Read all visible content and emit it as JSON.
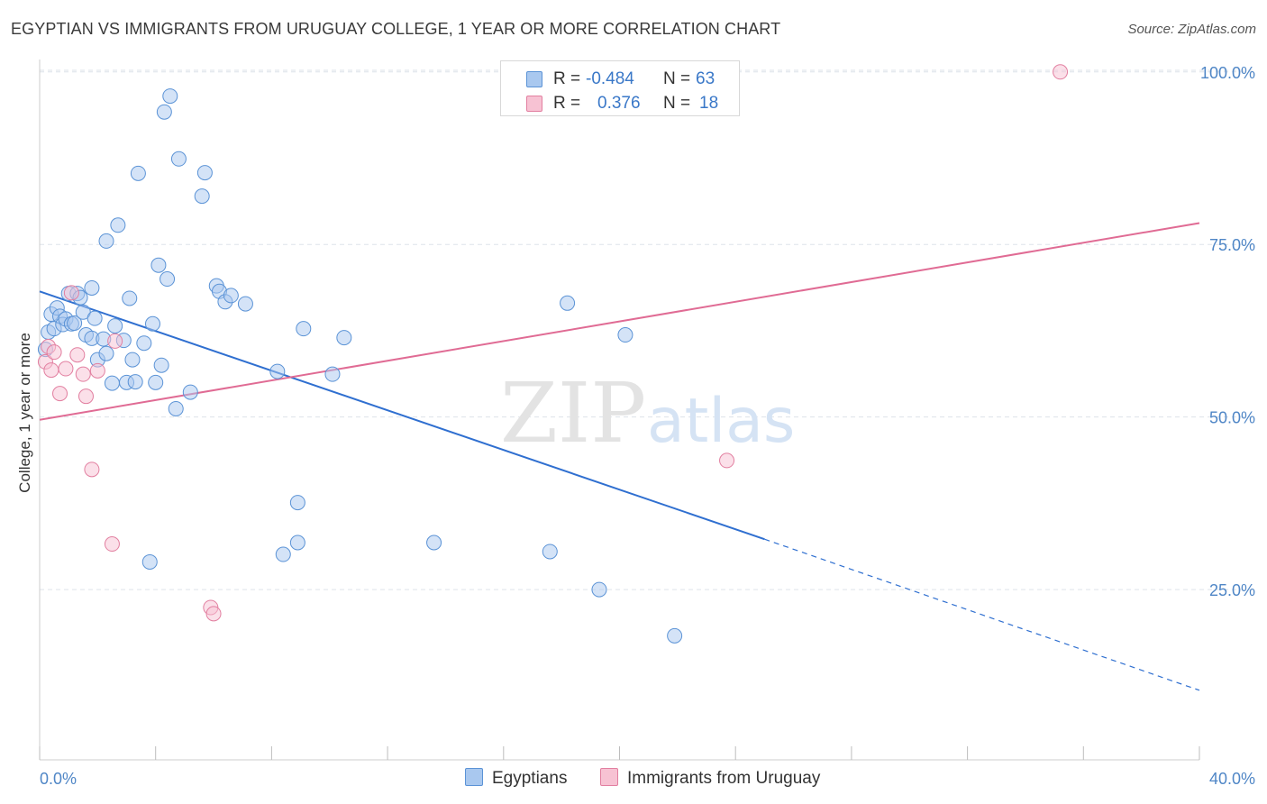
{
  "header": {
    "title": "EGYPTIAN VS IMMIGRANTS FROM URUGUAY COLLEGE, 1 YEAR OR MORE CORRELATION CHART",
    "source": "Source: ZipAtlas.com"
  },
  "legend": {
    "rows": [
      {
        "r_label": "R =",
        "r_value": "-0.484",
        "n_label": "N =",
        "n_value": "63"
      },
      {
        "r_label": "R =",
        "r_value": "0.376",
        "n_label": "N =",
        "n_value": "18"
      }
    ]
  },
  "bottom_legend": {
    "egyptians": "Egyptians",
    "uruguay": "Immigrants from Uruguay"
  },
  "watermark": {
    "zip": "ZIP",
    "atlas": "atlas"
  },
  "colors": {
    "blue_fill": "#a9c8ef",
    "blue_stroke": "#5b93d6",
    "blue_line": "#2f6fd0",
    "pink_fill": "#f7c2d3",
    "pink_stroke": "#e27fa0",
    "pink_line": "#e06b94",
    "grid": "#dde3ea",
    "tick_text": "#4f86c6"
  },
  "chart_data": {
    "type": "scatter",
    "title": "EGYPTIAN VS IMMIGRANTS FROM URUGUAY COLLEGE, 1 YEAR OR MORE CORRELATION CHART",
    "xlabel": "",
    "ylabel": "College, 1 year or more",
    "xlim": [
      0,
      40
    ],
    "ylim": [
      0,
      103
    ],
    "x_tick_labels": [
      "0.0%",
      "40.0%"
    ],
    "y_ticks": [
      25,
      50,
      75,
      100
    ],
    "y_tick_labels": [
      "25.0%",
      "50.0%",
      "75.0%",
      "100.0%"
    ],
    "grid": true,
    "series": [
      {
        "name": "Egyptians",
        "r": -0.484,
        "n": 63,
        "points": [
          [
            0.2,
            59.8
          ],
          [
            0.3,
            62.3
          ],
          [
            0.4,
            64.9
          ],
          [
            0.5,
            62.8
          ],
          [
            0.6,
            65.8
          ],
          [
            0.7,
            64.6
          ],
          [
            0.8,
            63.4
          ],
          [
            0.9,
            64.2
          ],
          [
            1.0,
            67.9
          ],
          [
            1.1,
            63.5
          ],
          [
            1.2,
            63.6
          ],
          [
            1.3,
            67.9
          ],
          [
            1.4,
            67.3
          ],
          [
            1.5,
            65.2
          ],
          [
            1.6,
            61.9
          ],
          [
            1.8,
            61.4
          ],
          [
            1.8,
            68.7
          ],
          [
            1.9,
            64.3
          ],
          [
            2.0,
            58.3
          ],
          [
            2.2,
            61.3
          ],
          [
            2.3,
            59.2
          ],
          [
            2.3,
            75.5
          ],
          [
            2.5,
            54.9
          ],
          [
            2.6,
            63.2
          ],
          [
            2.7,
            77.8
          ],
          [
            2.9,
            61.1
          ],
          [
            3.0,
            55.0
          ],
          [
            3.1,
            67.2
          ],
          [
            3.2,
            58.3
          ],
          [
            3.3,
            55.1
          ],
          [
            3.4,
            85.3
          ],
          [
            3.6,
            60.7
          ],
          [
            3.8,
            29.0
          ],
          [
            3.9,
            63.5
          ],
          [
            4.0,
            55.0
          ],
          [
            4.1,
            72.0
          ],
          [
            4.2,
            57.5
          ],
          [
            4.3,
            94.2
          ],
          [
            4.4,
            70.0
          ],
          [
            4.5,
            96.5
          ],
          [
            4.7,
            51.2
          ],
          [
            4.8,
            87.4
          ],
          [
            5.2,
            53.6
          ],
          [
            5.6,
            82.0
          ],
          [
            5.7,
            85.4
          ],
          [
            6.1,
            69.0
          ],
          [
            6.2,
            68.2
          ],
          [
            6.4,
            66.7
          ],
          [
            6.6,
            67.6
          ],
          [
            7.1,
            66.4
          ],
          [
            8.2,
            56.6
          ],
          [
            8.4,
            30.1
          ],
          [
            8.9,
            37.6
          ],
          [
            8.9,
            31.8
          ],
          [
            9.1,
            62.8
          ],
          [
            10.1,
            56.2
          ],
          [
            10.5,
            61.5
          ],
          [
            13.6,
            31.8
          ],
          [
            17.6,
            30.5
          ],
          [
            18.2,
            66.5
          ],
          [
            19.3,
            25.0
          ],
          [
            20.2,
            61.9
          ],
          [
            21.9,
            18.3
          ]
        ],
        "trend": {
          "x0": 0,
          "y0": 68.2,
          "x1_solid": 25.0,
          "y1_solid": 32.3,
          "x1": 40,
          "y1": 10.4
        }
      },
      {
        "name": "Immigrants from Uruguay",
        "r": 0.376,
        "n": 18,
        "points": [
          [
            0.2,
            58.0
          ],
          [
            0.3,
            60.2
          ],
          [
            0.4,
            56.8
          ],
          [
            0.5,
            59.4
          ],
          [
            0.7,
            53.4
          ],
          [
            0.9,
            57.0
          ],
          [
            1.1,
            68.0
          ],
          [
            1.3,
            59.0
          ],
          [
            1.5,
            56.2
          ],
          [
            1.6,
            53.0
          ],
          [
            1.8,
            42.4
          ],
          [
            2.0,
            56.7
          ],
          [
            2.5,
            31.6
          ],
          [
            2.6,
            61.0
          ],
          [
            5.9,
            22.4
          ],
          [
            6.0,
            21.5
          ],
          [
            23.7,
            43.7
          ],
          [
            35.2,
            100.0
          ]
        ],
        "trend": {
          "x0": 0,
          "y0": 49.6,
          "x1": 40,
          "y1": 78.1
        }
      }
    ]
  }
}
